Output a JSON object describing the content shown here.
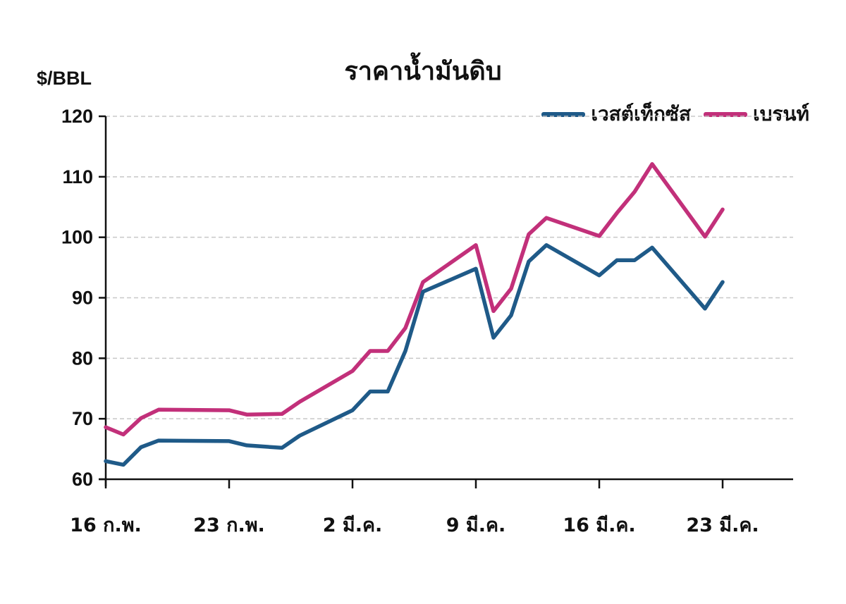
{
  "chart_data": {
    "type": "line",
    "title": "ราคาน้ำมันดิบ",
    "xlabel": "",
    "ylabel": "$/BBL",
    "ylim": [
      60,
      120
    ],
    "yticks": [
      60,
      70,
      80,
      90,
      100,
      110,
      120
    ],
    "xtick_labels": [
      "16 ก.พ.",
      "23 ก.พ.",
      "2 มี.ค.",
      "9 มี.ค.",
      "16 มี.ค.",
      "23 มี.ค."
    ],
    "grid": "horizontal dashed",
    "legend_position": "top-right",
    "x_days": [
      0,
      1,
      2,
      3,
      7,
      8,
      10,
      11,
      14,
      15,
      16,
      17,
      18,
      21,
      22,
      23,
      24,
      25,
      28,
      29,
      30,
      31,
      34,
      35
    ],
    "series": [
      {
        "name": "เวสต์เท็กซัส",
        "color": "#1f5a88",
        "values": [
          63.0,
          62.4,
          65.3,
          66.4,
          66.3,
          65.6,
          65.2,
          67.2,
          71.4,
          74.5,
          74.5,
          81.2,
          91.0,
          94.8,
          83.4,
          87.1,
          96.0,
          98.7,
          93.7,
          96.2,
          96.2,
          98.3,
          88.2,
          92.6
        ]
      },
      {
        "name": "เบรนท์",
        "color": "#c2307a",
        "values": [
          68.6,
          67.4,
          70.1,
          71.5,
          71.4,
          70.7,
          70.8,
          72.8,
          77.9,
          81.2,
          81.2,
          85.0,
          92.6,
          98.7,
          87.8,
          91.5,
          100.5,
          103.2,
          100.2,
          104.0,
          107.5,
          112.1,
          100.1,
          104.6
        ]
      }
    ]
  },
  "title": "ราคาน้ำมันดิบ",
  "yaxis": {
    "unit": "$/BBL",
    "ticks": [
      "60",
      "70",
      "80",
      "90",
      "100",
      "110",
      "120"
    ]
  },
  "xaxis": {
    "ticks": [
      "16 ก.พ.",
      "23 ก.พ.",
      "2 มี.ค.",
      "9 มี.ค.",
      "16 มี.ค.",
      "23 มี.ค."
    ]
  },
  "legend": {
    "items": [
      {
        "label": "เวสต์เท็กซัส",
        "color": "#1f5a88"
      },
      {
        "label": "เบรนท์",
        "color": "#c2307a"
      }
    ]
  }
}
